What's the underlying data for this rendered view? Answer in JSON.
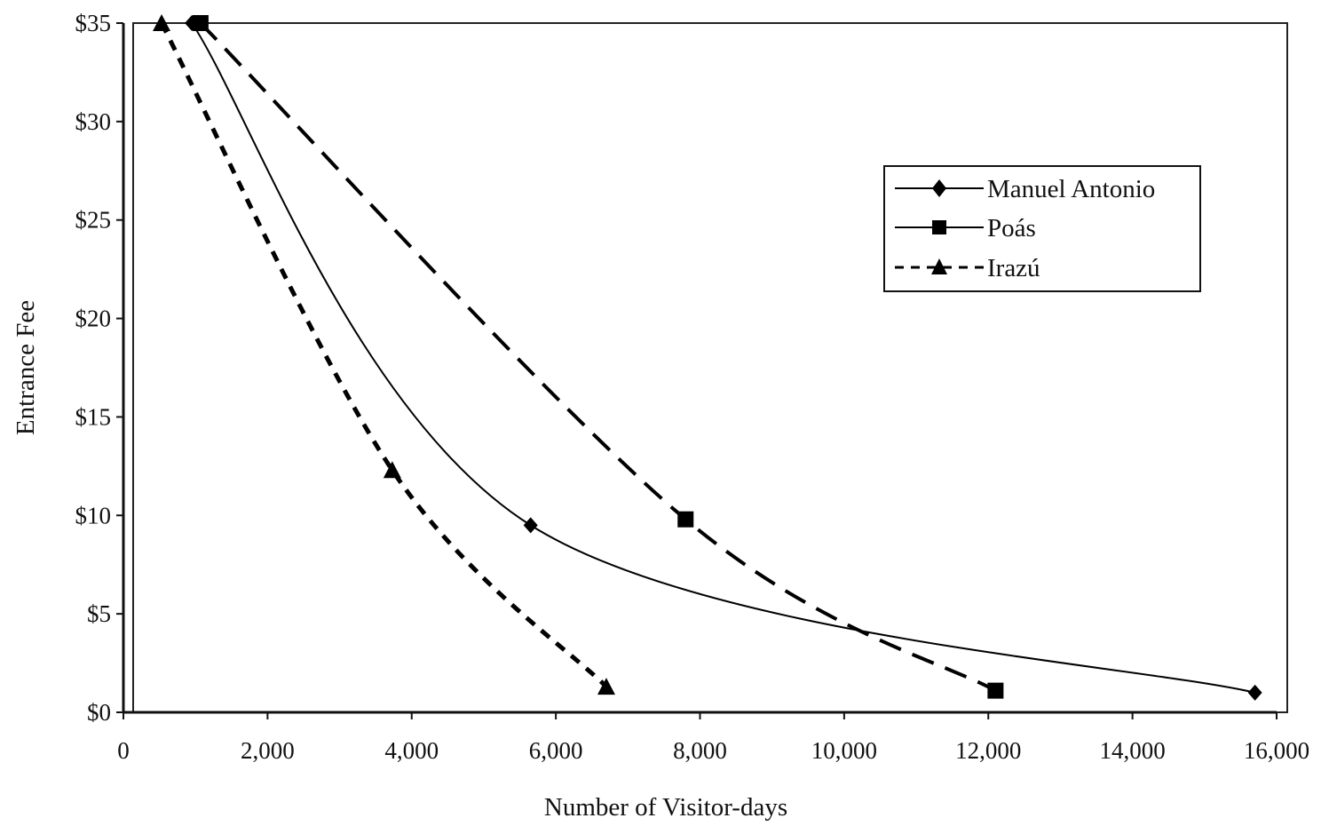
{
  "chart_data": {
    "type": "line",
    "xlabel": "Number of Visitor-days",
    "ylabel": "Entrance Fee",
    "xlim": [
      0,
      16000
    ],
    "ylim": [
      0,
      35
    ],
    "x_ticks": [
      {
        "value": 0,
        "label": "0"
      },
      {
        "value": 2000,
        "label": "2,000"
      },
      {
        "value": 4000,
        "label": "4,000"
      },
      {
        "value": 6000,
        "label": "6,000"
      },
      {
        "value": 8000,
        "label": "8,000"
      },
      {
        "value": 10000,
        "label": "10,000"
      },
      {
        "value": 12000,
        "label": "12,000"
      },
      {
        "value": 14000,
        "label": "14,000"
      },
      {
        "value": 16000,
        "label": "16,000"
      }
    ],
    "y_ticks": [
      {
        "value": 0,
        "label": "$0"
      },
      {
        "value": 5,
        "label": "$5"
      },
      {
        "value": 10,
        "label": "$10"
      },
      {
        "value": 15,
        "label": "$15"
      },
      {
        "value": 20,
        "label": "$20"
      },
      {
        "value": 25,
        "label": "$25"
      },
      {
        "value": 30,
        "label": "$30"
      },
      {
        "value": 35,
        "label": "$35"
      }
    ],
    "grid": false,
    "legend_position": "top-right",
    "series": [
      {
        "name": "Manuel Antonio",
        "line_style": "solid",
        "marker": "diamond",
        "color": "#000000",
        "points": [
          [
            950,
            35
          ],
          [
            5650,
            9.5
          ],
          [
            15700,
            1
          ]
        ]
      },
      {
        "name": "Poás",
        "line_style": "long-dash",
        "marker": "square",
        "color": "#000000",
        "points": [
          [
            1070,
            35
          ],
          [
            7800,
            9.8
          ],
          [
            12100,
            1.1
          ]
        ]
      },
      {
        "name": "Irazú",
        "line_style": "short-dash",
        "marker": "triangle",
        "color": "#000000",
        "points": [
          [
            530,
            35
          ],
          [
            3730,
            12.3
          ],
          [
            6700,
            1.3
          ]
        ]
      }
    ]
  }
}
